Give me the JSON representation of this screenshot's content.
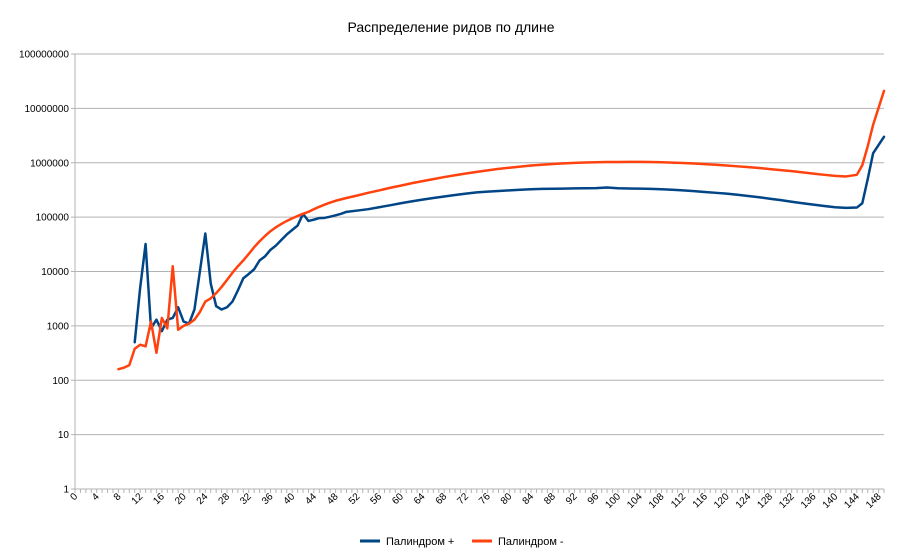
{
  "chart_data": {
    "type": "line",
    "title": "Распределение ридов по длине",
    "xlabel": "",
    "ylabel": "",
    "y_scale": "log",
    "ylim": [
      1,
      100000000
    ],
    "xlim": [
      0,
      149
    ],
    "x_tick_labels": [
      "0",
      "4",
      "8",
      "12",
      "16",
      "20",
      "24",
      "28",
      "32",
      "36",
      "40",
      "44",
      "48",
      "52",
      "56",
      "60",
      "64",
      "68",
      "72",
      "76",
      "80",
      "84",
      "88",
      "92",
      "96",
      "100",
      "104",
      "108",
      "112",
      "116",
      "120",
      "124",
      "128",
      "132",
      "136",
      "140",
      "144",
      "148"
    ],
    "y_tick_labels": [
      "1",
      "10",
      "100",
      "1000",
      "10000",
      "100000",
      "1000000",
      "10000000",
      "100000000"
    ],
    "grid": "horizontal",
    "legend_position": "bottom",
    "series": [
      {
        "name": "Палиндром +",
        "color": "#004586",
        "points": [
          [
            11,
            500
          ],
          [
            12,
            5000
          ],
          [
            13,
            32000
          ],
          [
            14,
            900
          ],
          [
            15,
            1300
          ],
          [
            16,
            800
          ],
          [
            17,
            1300
          ],
          [
            18,
            1400
          ],
          [
            19,
            2200
          ],
          [
            20,
            1200
          ],
          [
            21,
            1100
          ],
          [
            22,
            2000
          ],
          [
            23,
            10000
          ],
          [
            24,
            50000
          ],
          [
            25,
            6000
          ],
          [
            26,
            2300
          ],
          [
            27,
            2000
          ],
          [
            28,
            2200
          ],
          [
            29,
            2800
          ],
          [
            30,
            4500
          ],
          [
            31,
            7500
          ],
          [
            32,
            9000
          ],
          [
            33,
            11000
          ],
          [
            34,
            16000
          ],
          [
            35,
            19000
          ],
          [
            36,
            25000
          ],
          [
            37,
            30000
          ],
          [
            38,
            38000
          ],
          [
            39,
            48000
          ],
          [
            40,
            58000
          ],
          [
            41,
            70000
          ],
          [
            42,
            115000
          ],
          [
            43,
            85000
          ],
          [
            44,
            90000
          ],
          [
            45,
            96000
          ],
          [
            46,
            97000
          ],
          [
            47,
            102000
          ],
          [
            48,
            108000
          ],
          [
            49,
            115000
          ],
          [
            50,
            125000
          ],
          [
            52,
            132000
          ],
          [
            54,
            140000
          ],
          [
            56,
            152000
          ],
          [
            58,
            165000
          ],
          [
            60,
            180000
          ],
          [
            62,
            195000
          ],
          [
            64,
            210000
          ],
          [
            66,
            225000
          ],
          [
            68,
            240000
          ],
          [
            70,
            255000
          ],
          [
            72,
            270000
          ],
          [
            74,
            285000
          ],
          [
            76,
            295000
          ],
          [
            78,
            302000
          ],
          [
            80,
            310000
          ],
          [
            82,
            318000
          ],
          [
            84,
            325000
          ],
          [
            86,
            330000
          ],
          [
            88,
            332000
          ],
          [
            90,
            335000
          ],
          [
            92,
            338000
          ],
          [
            94,
            340000
          ],
          [
            96,
            342000
          ],
          [
            98,
            350000
          ],
          [
            100,
            340000
          ],
          [
            102,
            336000
          ],
          [
            104,
            334000
          ],
          [
            106,
            330000
          ],
          [
            108,
            325000
          ],
          [
            110,
            318000
          ],
          [
            112,
            310000
          ],
          [
            114,
            300000
          ],
          [
            116,
            290000
          ],
          [
            118,
            280000
          ],
          [
            120,
            270000
          ],
          [
            122,
            258000
          ],
          [
            124,
            245000
          ],
          [
            126,
            232000
          ],
          [
            128,
            218000
          ],
          [
            130,
            205000
          ],
          [
            132,
            192000
          ],
          [
            134,
            180000
          ],
          [
            136,
            170000
          ],
          [
            138,
            160000
          ],
          [
            140,
            152000
          ],
          [
            142,
            148000
          ],
          [
            144,
            150000
          ],
          [
            145,
            180000
          ],
          [
            146,
            500000
          ],
          [
            147,
            1500000
          ],
          [
            149,
            3000000
          ]
        ]
      },
      {
        "name": "Палиндром -",
        "color": "#ff420e",
        "points": [
          [
            8,
            160
          ],
          [
            9,
            170
          ],
          [
            10,
            190
          ],
          [
            11,
            380
          ],
          [
            12,
            450
          ],
          [
            13,
            420
          ],
          [
            14,
            1200
          ],
          [
            15,
            320
          ],
          [
            16,
            1400
          ],
          [
            17,
            900
          ],
          [
            18,
            12500
          ],
          [
            19,
            850
          ],
          [
            20,
            1000
          ],
          [
            21,
            1100
          ],
          [
            22,
            1300
          ],
          [
            23,
            1800
          ],
          [
            24,
            2800
          ],
          [
            25,
            3200
          ],
          [
            26,
            4000
          ],
          [
            27,
            5200
          ],
          [
            28,
            7000
          ],
          [
            29,
            9500
          ],
          [
            30,
            12500
          ],
          [
            31,
            16000
          ],
          [
            32,
            21000
          ],
          [
            33,
            28000
          ],
          [
            34,
            36000
          ],
          [
            35,
            45000
          ],
          [
            36,
            55000
          ],
          [
            37,
            65000
          ],
          [
            38,
            75000
          ],
          [
            39,
            85000
          ],
          [
            40,
            95000
          ],
          [
            41,
            105000
          ],
          [
            42,
            115000
          ],
          [
            43,
            125000
          ],
          [
            44,
            140000
          ],
          [
            45,
            155000
          ],
          [
            46,
            170000
          ],
          [
            47,
            185000
          ],
          [
            48,
            200000
          ],
          [
            50,
            225000
          ],
          [
            52,
            250000
          ],
          [
            54,
            280000
          ],
          [
            56,
            310000
          ],
          [
            58,
            345000
          ],
          [
            60,
            380000
          ],
          [
            62,
            420000
          ],
          [
            64,
            460000
          ],
          [
            66,
            500000
          ],
          [
            68,
            545000
          ],
          [
            70,
            590000
          ],
          [
            72,
            635000
          ],
          [
            74,
            680000
          ],
          [
            76,
            725000
          ],
          [
            78,
            770000
          ],
          [
            80,
            810000
          ],
          [
            82,
            850000
          ],
          [
            84,
            890000
          ],
          [
            86,
            920000
          ],
          [
            88,
            950000
          ],
          [
            90,
            975000
          ],
          [
            92,
            995000
          ],
          [
            94,
            1010000
          ],
          [
            96,
            1020000
          ],
          [
            98,
            1030000
          ],
          [
            100,
            1035000
          ],
          [
            102,
            1038000
          ],
          [
            104,
            1038000
          ],
          [
            106,
            1030000
          ],
          [
            108,
            1020000
          ],
          [
            110,
            1005000
          ],
          [
            112,
            990000
          ],
          [
            114,
            970000
          ],
          [
            116,
            945000
          ],
          [
            118,
            920000
          ],
          [
            120,
            890000
          ],
          [
            122,
            860000
          ],
          [
            124,
            830000
          ],
          [
            126,
            800000
          ],
          [
            128,
            765000
          ],
          [
            130,
            730000
          ],
          [
            132,
            700000
          ],
          [
            134,
            665000
          ],
          [
            136,
            630000
          ],
          [
            138,
            600000
          ],
          [
            140,
            575000
          ],
          [
            142,
            560000
          ],
          [
            144,
            600000
          ],
          [
            145,
            900000
          ],
          [
            146,
            2000000
          ],
          [
            147,
            5000000
          ],
          [
            149,
            21000000
          ]
        ]
      }
    ]
  }
}
